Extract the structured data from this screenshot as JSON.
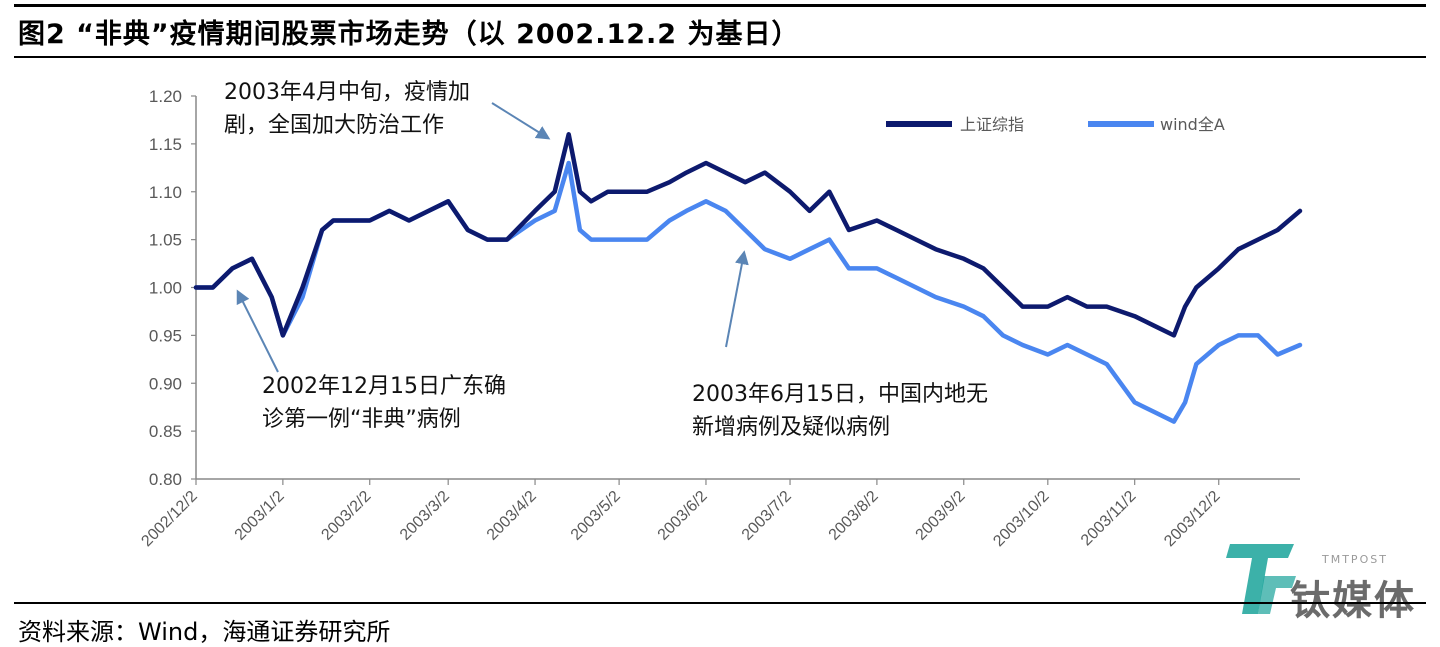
{
  "title": "图2  “非典”疫情期间股票市场走势（以 2002.12.2 为基日）",
  "source": "资料来源：Wind，海通证券研究所",
  "annotations": {
    "a1": [
      "2003年4月中旬，疫情加",
      "剧，全国加大防治工作"
    ],
    "a2": [
      "2002年12月15日广东确",
      "诊第一例“非典”病例"
    ],
    "a3": [
      "2003年6月15日，中国内地无",
      "新增病例及疑似病例"
    ]
  },
  "watermark": {
    "text": "钛媒体",
    "sub": "TMTPOST"
  },
  "colors": {
    "series1": "#0d1a6e",
    "series2": "#4a86f0",
    "arrow": "#5b85b5"
  },
  "chart_data": {
    "type": "line",
    "title": "“非典”疫情期间股票市场走势（以 2002.12.2 为基日）",
    "xlabel": "",
    "ylabel": "",
    "ylim": [
      0.8,
      1.2
    ],
    "yticks": [
      "0.80",
      "0.85",
      "0.90",
      "0.95",
      "1.00",
      "1.05",
      "1.10",
      "1.15",
      "1.20"
    ],
    "xticks": [
      "2002/12/2",
      "2003/1/2",
      "2003/2/2",
      "2003/3/2",
      "2003/4/2",
      "2003/5/2",
      "2003/6/2",
      "2003/7/2",
      "2003/8/2",
      "2003/9/2",
      "2003/10/2",
      "2003/11/2",
      "2003/12/2"
    ],
    "legend_position": "top-right",
    "grid": false,
    "x": [
      "2002-12-02",
      "2002-12-08",
      "2002-12-15",
      "2002-12-22",
      "2002-12-29",
      "2003-01-02",
      "2003-01-09",
      "2003-01-16",
      "2003-01-20",
      "2003-01-27",
      "2003-02-02",
      "2003-02-09",
      "2003-02-16",
      "2003-02-23",
      "2003-03-02",
      "2003-03-09",
      "2003-03-16",
      "2003-03-23",
      "2003-04-02",
      "2003-04-09",
      "2003-04-14",
      "2003-04-18",
      "2003-04-22",
      "2003-04-28",
      "2003-05-02",
      "2003-05-12",
      "2003-05-20",
      "2003-05-26",
      "2003-06-02",
      "2003-06-09",
      "2003-06-16",
      "2003-06-23",
      "2003-07-02",
      "2003-07-09",
      "2003-07-16",
      "2003-07-23",
      "2003-08-02",
      "2003-08-09",
      "2003-08-16",
      "2003-08-23",
      "2003-09-02",
      "2003-09-09",
      "2003-09-16",
      "2003-09-23",
      "2003-10-02",
      "2003-10-09",
      "2003-10-16",
      "2003-10-23",
      "2003-11-02",
      "2003-11-09",
      "2003-11-16",
      "2003-11-20",
      "2003-11-24",
      "2003-12-02",
      "2003-12-09",
      "2003-12-16",
      "2003-12-23",
      "2003-12-31"
    ],
    "series": [
      {
        "name": "上证综指",
        "values": [
          1.0,
          1.0,
          1.02,
          1.03,
          0.99,
          0.95,
          1.0,
          1.06,
          1.07,
          1.07,
          1.07,
          1.08,
          1.07,
          1.08,
          1.09,
          1.06,
          1.05,
          1.05,
          1.08,
          1.1,
          1.16,
          1.1,
          1.09,
          1.1,
          1.1,
          1.1,
          1.11,
          1.12,
          1.13,
          1.12,
          1.11,
          1.12,
          1.1,
          1.08,
          1.1,
          1.06,
          1.07,
          1.06,
          1.05,
          1.04,
          1.03,
          1.02,
          1.0,
          0.98,
          0.98,
          0.99,
          0.98,
          0.98,
          0.97,
          0.96,
          0.95,
          0.98,
          1.0,
          1.02,
          1.04,
          1.05,
          1.06,
          1.08
        ]
      },
      {
        "name": "wind全A",
        "values": [
          1.0,
          1.0,
          1.02,
          1.03,
          0.99,
          0.95,
          0.99,
          1.06,
          1.07,
          1.07,
          1.07,
          1.08,
          1.07,
          1.08,
          1.09,
          1.06,
          1.05,
          1.05,
          1.07,
          1.08,
          1.13,
          1.06,
          1.05,
          1.05,
          1.05,
          1.05,
          1.07,
          1.08,
          1.09,
          1.08,
          1.06,
          1.04,
          1.03,
          1.04,
          1.05,
          1.02,
          1.02,
          1.01,
          1.0,
          0.99,
          0.98,
          0.97,
          0.95,
          0.94,
          0.93,
          0.94,
          0.93,
          0.92,
          0.88,
          0.87,
          0.86,
          0.88,
          0.92,
          0.94,
          0.95,
          0.95,
          0.93,
          0.94
        ]
      }
    ]
  }
}
